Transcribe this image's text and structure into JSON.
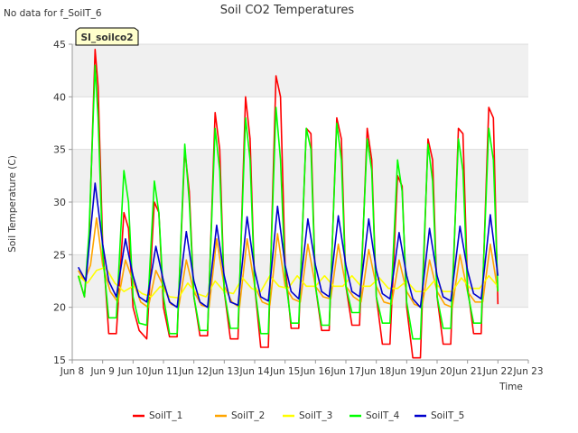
{
  "page": {
    "no_data_note": "No data for f_SoilT_6",
    "site_badge": "SI_soilco2"
  },
  "colors": {
    "band": "#f0f0f0",
    "SoilT_1": "#ff0000",
    "SoilT_2": "#ffa500",
    "SoilT_3": "#ffff00",
    "SoilT_4": "#00ff00",
    "SoilT_5": "#0000cd"
  },
  "chart_data": {
    "type": "line",
    "title": "Soil CO2 Temperatures",
    "xlabel": "Time",
    "ylabel": "Soil Temperature (C)",
    "xlim": [
      8,
      23
    ],
    "ylim": [
      15,
      45
    ],
    "x_ticks": [
      {
        "value": 8,
        "label": "Jun 8"
      },
      {
        "value": 9,
        "label": "Jun 9"
      },
      {
        "value": 10,
        "label": "Jun 10"
      },
      {
        "value": 11,
        "label": "Jun 11"
      },
      {
        "value": 12,
        "label": "Jun 12"
      },
      {
        "value": 13,
        "label": "Jun 13"
      },
      {
        "value": 14,
        "label": "Jun 14"
      },
      {
        "value": 15,
        "label": "Jun 15"
      },
      {
        "value": 16,
        "label": "Jun 16"
      },
      {
        "value": 17,
        "label": "Jun 17"
      },
      {
        "value": 18,
        "label": "Jun 18"
      },
      {
        "value": 19,
        "label": "Jun 19"
      },
      {
        "value": 20,
        "label": "Jun 20"
      },
      {
        "value": 21,
        "label": "Jun 21"
      },
      {
        "value": 22,
        "label": "Jun 22"
      },
      {
        "value": 23,
        "label": "Jun 23"
      }
    ],
    "y_ticks": [
      15,
      20,
      25,
      30,
      35,
      40,
      45
    ],
    "grid": true,
    "legend_position": "bottom",
    "series": [
      {
        "name": "SoilT_1",
        "x": [
          8.2,
          8.4,
          8.55,
          8.75,
          8.85,
          9.0,
          9.2,
          9.45,
          9.7,
          9.85,
          10.0,
          10.2,
          10.45,
          10.7,
          10.85,
          11.0,
          11.2,
          11.45,
          11.7,
          11.85,
          12.0,
          12.2,
          12.45,
          12.7,
          12.85,
          13.0,
          13.2,
          13.45,
          13.7,
          13.85,
          14.0,
          14.2,
          14.45,
          14.7,
          14.85,
          15.0,
          15.2,
          15.45,
          15.7,
          15.85,
          16.0,
          16.2,
          16.45,
          16.7,
          16.85,
          17.0,
          17.2,
          17.45,
          17.7,
          17.85,
          18.0,
          18.2,
          18.45,
          18.7,
          18.85,
          19.0,
          19.2,
          19.45,
          19.7,
          19.85,
          20.0,
          20.2,
          20.45,
          20.7,
          20.85,
          21.0,
          21.2,
          21.45,
          21.7,
          21.85,
          22.0
        ],
        "y": [
          23.0,
          21.0,
          26.0,
          44.5,
          41.0,
          26.0,
          17.5,
          17.5,
          29.0,
          27.5,
          20.0,
          17.8,
          17.0,
          30.0,
          29.0,
          20.0,
          17.2,
          17.2,
          35.0,
          31.0,
          21.0,
          17.3,
          17.3,
          38.5,
          35.0,
          21.5,
          17.0,
          17.0,
          40.0,
          36.0,
          22.0,
          16.2,
          16.2,
          42.0,
          40.0,
          24.0,
          18.0,
          18.0,
          37.0,
          36.5,
          22.0,
          17.8,
          17.8,
          38.0,
          36.0,
          22.0,
          18.3,
          18.3,
          37.0,
          34.0,
          21.0,
          16.5,
          16.5,
          32.5,
          31.5,
          20.0,
          15.2,
          15.2,
          36.0,
          34.0,
          21.0,
          16.5,
          16.5,
          37.0,
          36.5,
          22.0,
          17.5,
          17.5,
          39.0,
          38.0,
          20.3
        ]
      },
      {
        "name": "SoilT_2",
        "x": [
          8.2,
          8.4,
          8.6,
          8.8,
          9.0,
          9.25,
          9.5,
          9.75,
          10.0,
          10.25,
          10.5,
          10.75,
          11.0,
          11.25,
          11.5,
          11.75,
          12.0,
          12.25,
          12.5,
          12.75,
          13.0,
          13.25,
          13.5,
          13.75,
          14.0,
          14.25,
          14.5,
          14.75,
          15.0,
          15.25,
          15.5,
          15.75,
          16.0,
          16.25,
          16.5,
          16.75,
          17.0,
          17.25,
          17.5,
          17.75,
          18.0,
          18.25,
          18.5,
          18.75,
          19.0,
          19.25,
          19.5,
          19.75,
          20.0,
          20.25,
          20.5,
          20.75,
          21.0,
          21.25,
          21.5,
          21.75,
          22.0
        ],
        "y": [
          23.5,
          22.5,
          24.0,
          28.5,
          24.0,
          21.5,
          20.5,
          24.5,
          22.5,
          20.5,
          20.0,
          23.5,
          22.0,
          20.3,
          20.0,
          24.5,
          21.5,
          20.2,
          20.0,
          26.5,
          22.0,
          20.5,
          20.0,
          26.5,
          22.0,
          20.5,
          20.2,
          27.0,
          22.0,
          20.8,
          20.5,
          26.0,
          22.0,
          21.0,
          20.8,
          26.0,
          22.0,
          21.0,
          20.5,
          25.5,
          22.0,
          20.5,
          20.3,
          24.5,
          21.5,
          20.3,
          20.0,
          24.5,
          21.5,
          20.3,
          20.0,
          25.0,
          21.5,
          20.5,
          20.5,
          26.0,
          21.5
        ]
      },
      {
        "name": "SoilT_3",
        "x": [
          8.2,
          8.5,
          8.8,
          9.1,
          9.4,
          9.7,
          10.0,
          10.3,
          10.6,
          10.9,
          11.2,
          11.5,
          11.8,
          12.1,
          12.4,
          12.7,
          13.0,
          13.3,
          13.6,
          13.9,
          14.2,
          14.5,
          14.8,
          15.1,
          15.4,
          15.7,
          16.0,
          16.3,
          16.6,
          16.9,
          17.2,
          17.5,
          17.8,
          18.1,
          18.4,
          18.7,
          19.0,
          19.3,
          19.6,
          19.9,
          20.2,
          20.5,
          20.8,
          21.1,
          21.4,
          21.7,
          22.0
        ],
        "y": [
          23.0,
          22.3,
          23.5,
          23.8,
          22.3,
          21.5,
          22.0,
          21.3,
          21.0,
          22.0,
          21.0,
          20.9,
          22.3,
          21.3,
          21.0,
          22.5,
          21.5,
          21.3,
          22.8,
          21.8,
          21.5,
          23.0,
          22.0,
          21.8,
          23.0,
          22.0,
          22.0,
          23.0,
          22.0,
          22.0,
          23.0,
          22.0,
          22.0,
          22.8,
          21.8,
          21.8,
          22.5,
          21.5,
          21.5,
          22.5,
          21.5,
          21.5,
          22.8,
          21.8,
          21.8,
          23.0,
          22.0
        ]
      },
      {
        "name": "SoilT_4",
        "x": [
          8.2,
          8.4,
          8.55,
          8.75,
          8.85,
          9.0,
          9.2,
          9.45,
          9.7,
          9.85,
          10.0,
          10.2,
          10.45,
          10.7,
          10.85,
          11.0,
          11.2,
          11.45,
          11.7,
          11.85,
          12.0,
          12.2,
          12.45,
          12.7,
          12.85,
          13.0,
          13.2,
          13.45,
          13.7,
          13.85,
          14.0,
          14.2,
          14.45,
          14.7,
          14.85,
          15.0,
          15.2,
          15.45,
          15.7,
          15.85,
          16.0,
          16.2,
          16.45,
          16.7,
          16.85,
          17.0,
          17.2,
          17.45,
          17.7,
          17.85,
          18.0,
          18.2,
          18.45,
          18.7,
          18.85,
          19.0,
          19.2,
          19.45,
          19.7,
          19.85,
          20.0,
          20.2,
          20.45,
          20.7,
          20.85,
          21.0,
          21.2,
          21.45,
          21.7,
          21.85,
          22.0
        ],
        "y": [
          23.0,
          21.0,
          27.0,
          43.0,
          38.0,
          25.0,
          19.0,
          19.0,
          33.0,
          30.0,
          21.0,
          18.5,
          18.3,
          32.0,
          29.0,
          21.0,
          17.5,
          17.5,
          35.5,
          30.0,
          21.0,
          17.8,
          17.8,
          37.0,
          33.0,
          21.5,
          18.0,
          18.0,
          38.0,
          34.0,
          22.0,
          17.5,
          17.5,
          39.0,
          34.0,
          23.0,
          18.5,
          18.5,
          37.0,
          35.0,
          22.0,
          18.3,
          18.3,
          37.5,
          34.0,
          22.0,
          19.5,
          19.5,
          36.0,
          33.0,
          21.0,
          18.5,
          18.5,
          34.0,
          31.0,
          20.5,
          17.0,
          17.0,
          35.5,
          32.0,
          21.0,
          18.0,
          18.0,
          36.0,
          33.0,
          21.5,
          18.5,
          18.5,
          37.0,
          34.0,
          21.5
        ]
      },
      {
        "name": "SoilT_5",
        "x": [
          8.2,
          8.45,
          8.75,
          9.0,
          9.2,
          9.45,
          9.75,
          10.0,
          10.2,
          10.45,
          10.75,
          11.0,
          11.2,
          11.45,
          11.75,
          12.0,
          12.2,
          12.45,
          12.75,
          13.0,
          13.2,
          13.45,
          13.75,
          14.0,
          14.2,
          14.45,
          14.75,
          15.0,
          15.2,
          15.45,
          15.75,
          16.0,
          16.2,
          16.45,
          16.75,
          17.0,
          17.2,
          17.45,
          17.75,
          18.0,
          18.2,
          18.45,
          18.75,
          19.0,
          19.2,
          19.45,
          19.75,
          20.0,
          20.2,
          20.45,
          20.75,
          21.0,
          21.2,
          21.45,
          21.75,
          22.0
        ],
        "y": [
          23.8,
          22.5,
          31.8,
          26.0,
          22.5,
          21.0,
          26.5,
          23.0,
          21.0,
          20.5,
          25.8,
          22.5,
          20.5,
          20.0,
          27.2,
          22.5,
          20.5,
          20.0,
          27.8,
          23.0,
          20.5,
          20.2,
          28.6,
          23.5,
          21.0,
          20.6,
          29.6,
          24.0,
          21.5,
          20.8,
          28.4,
          24.0,
          21.5,
          21.0,
          28.7,
          24.0,
          21.5,
          21.0,
          28.4,
          23.5,
          21.3,
          20.8,
          27.1,
          23.0,
          20.8,
          20.0,
          27.5,
          23.0,
          21.0,
          20.6,
          27.7,
          23.5,
          21.3,
          20.8,
          28.8,
          23.0
        ]
      }
    ]
  }
}
